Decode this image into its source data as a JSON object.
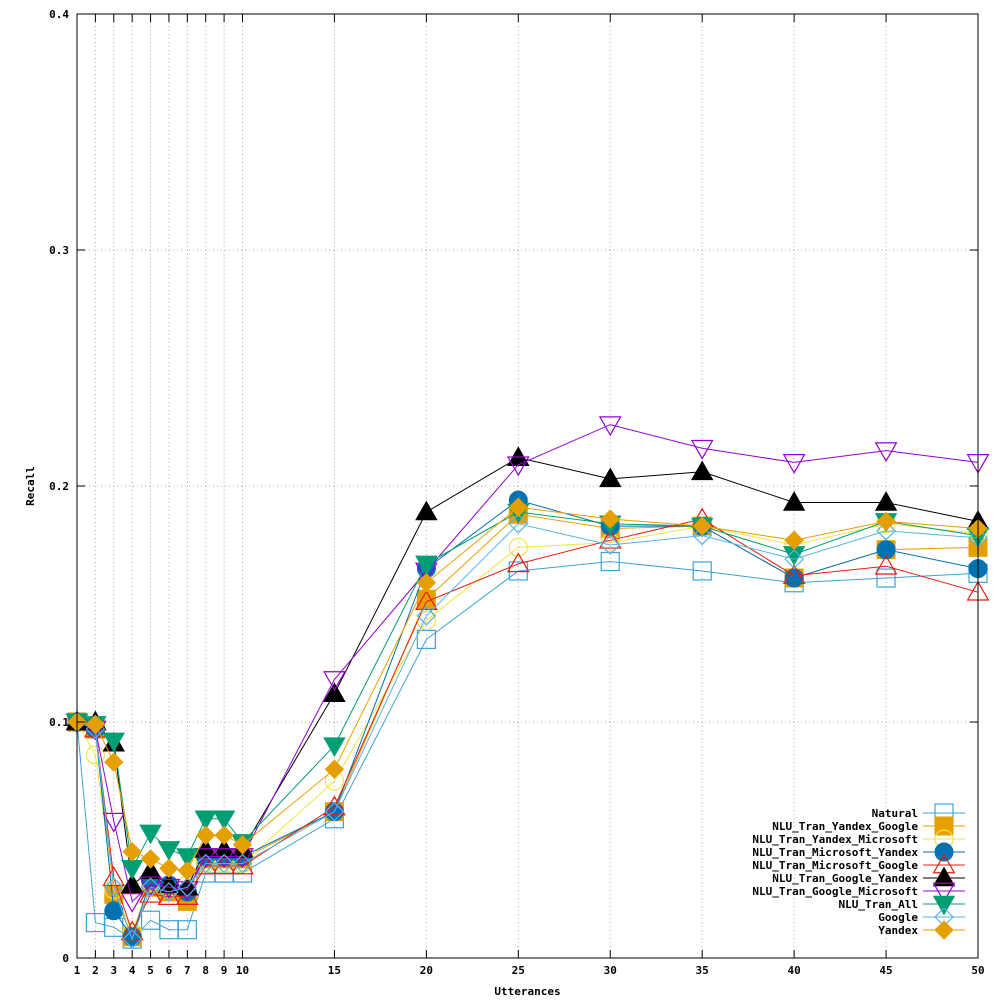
{
  "chart_data": {
    "type": "line",
    "title": "",
    "xlabel": "Utterances",
    "ylabel": "Recall",
    "xlim": [
      1,
      50
    ],
    "ylim": [
      0,
      0.4
    ],
    "x": [
      1,
      2,
      3,
      4,
      5,
      6,
      7,
      8,
      9,
      10,
      15,
      20,
      25,
      30,
      35,
      40,
      45,
      50
    ],
    "x_tick_labels": [
      "1",
      "2",
      "3",
      "4",
      "5",
      "6",
      "7",
      "8",
      "9",
      "10",
      "15",
      "20",
      "25",
      "30",
      "35",
      "40",
      "45",
      "50"
    ],
    "y_ticks": [
      0,
      0.1,
      0.2,
      0.3,
      0.4
    ],
    "y_tick_labels": [
      "0",
      "0.1",
      "0.2",
      "0.3",
      "0.4"
    ],
    "grid": true,
    "legend_position": "bottom-right",
    "series": [
      {
        "name": "Natural",
        "color": "#3ba3d6",
        "marker": "square-open",
        "values": [
          0.1,
          0.015,
          0.013,
          0.008,
          0.016,
          0.012,
          0.012,
          0.036,
          0.036,
          0.036,
          0.059,
          0.135,
          0.164,
          0.168,
          0.164,
          0.159,
          0.161,
          0.163
        ]
      },
      {
        "name": "NLU_Tran_Yandex_Google",
        "color": "#e69f00",
        "marker": "square-filled",
        "values": [
          0.1,
          0.097,
          0.027,
          0.009,
          0.03,
          0.028,
          0.024,
          0.042,
          0.042,
          0.042,
          0.062,
          0.152,
          0.188,
          0.182,
          0.183,
          0.161,
          0.173,
          0.174
        ]
      },
      {
        "name": "NLU_Tran_Yandex_Microsoft",
        "color": "#f0e442",
        "marker": "circle-open",
        "values": [
          0.1,
          0.086,
          0.029,
          0.011,
          0.032,
          0.03,
          0.031,
          0.04,
          0.04,
          0.04,
          0.075,
          0.143,
          0.174,
          0.176,
          0.183,
          0.175,
          0.184,
          0.18
        ]
      },
      {
        "name": "NLU_Tran_Microsoft_Yandex",
        "color": "#0072b2",
        "marker": "circle-filled",
        "values": [
          0.1,
          0.097,
          0.02,
          0.009,
          0.033,
          0.031,
          0.028,
          0.043,
          0.043,
          0.043,
          0.062,
          0.165,
          0.194,
          0.183,
          0.183,
          0.161,
          0.173,
          0.165
        ]
      },
      {
        "name": "NLU_Tran_Microsoft_Google",
        "color": "#e51e10",
        "marker": "triangle-up-open",
        "values": [
          0.1,
          0.097,
          0.034,
          0.011,
          0.027,
          0.026,
          0.026,
          0.039,
          0.039,
          0.039,
          0.064,
          0.151,
          0.167,
          0.177,
          0.186,
          0.162,
          0.166,
          0.155
        ]
      },
      {
        "name": "NLU_Tran_Google_Yandex",
        "color": "#000000",
        "marker": "triangle-up-filled",
        "values": [
          0.1,
          0.1,
          0.091,
          0.031,
          0.037,
          0.031,
          0.03,
          0.046,
          0.046,
          0.046,
          0.112,
          0.189,
          0.212,
          0.203,
          0.206,
          0.193,
          0.193,
          0.185
        ]
      },
      {
        "name": "NLU_Tran_Google_Microsoft",
        "color": "#9400d3",
        "marker": "triangle-down-open",
        "values": [
          0.1,
          0.097,
          0.058,
          0.024,
          0.031,
          0.03,
          0.029,
          0.043,
          0.043,
          0.043,
          0.118,
          0.164,
          0.209,
          0.226,
          0.216,
          0.21,
          0.215,
          0.21
        ]
      },
      {
        "name": "NLU_Tran_All",
        "color": "#009e73",
        "marker": "triangle-down-filled",
        "values": [
          0.1,
          0.099,
          0.092,
          0.038,
          0.053,
          0.046,
          0.043,
          0.059,
          0.059,
          0.049,
          0.09,
          0.167,
          0.189,
          0.184,
          0.183,
          0.171,
          0.185,
          0.179
        ]
      },
      {
        "name": "Google",
        "color": "#56b4e9",
        "marker": "diamond-open",
        "values": [
          0.1,
          0.097,
          0.03,
          0.008,
          0.03,
          0.028,
          0.03,
          0.04,
          0.04,
          0.04,
          0.062,
          0.145,
          0.184,
          0.175,
          0.179,
          0.169,
          0.181,
          0.178
        ]
      },
      {
        "name": "Yandex",
        "color": "#e69f00",
        "marker": "diamond-filled",
        "values": [
          0.1,
          0.099,
          0.083,
          0.045,
          0.042,
          0.038,
          0.037,
          0.052,
          0.052,
          0.048,
          0.08,
          0.159,
          0.191,
          0.186,
          0.183,
          0.177,
          0.185,
          0.182
        ]
      }
    ]
  }
}
